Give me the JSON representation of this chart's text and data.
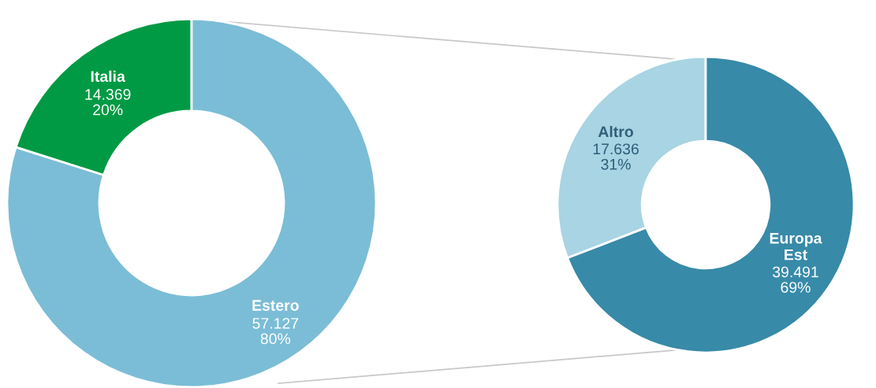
{
  "chart_data": [
    {
      "type": "donut",
      "categories": [
        "Italia",
        "Estero"
      ],
      "values": [
        14369,
        57127
      ],
      "colors": [
        "#009a44",
        "#7bbdd6"
      ],
      "value_labels": [
        "14.369\n20%",
        "57.127\n80%"
      ]
    },
    {
      "type": "donut",
      "categories": [
        "Altro",
        "Europa\nEst"
      ],
      "values": [
        17636,
        39491
      ],
      "colors": [
        "#a8d4e3",
        "#378aa8"
      ],
      "value_labels": [
        "17.636\n31%",
        "39.491\n69%"
      ]
    }
  ]
}
